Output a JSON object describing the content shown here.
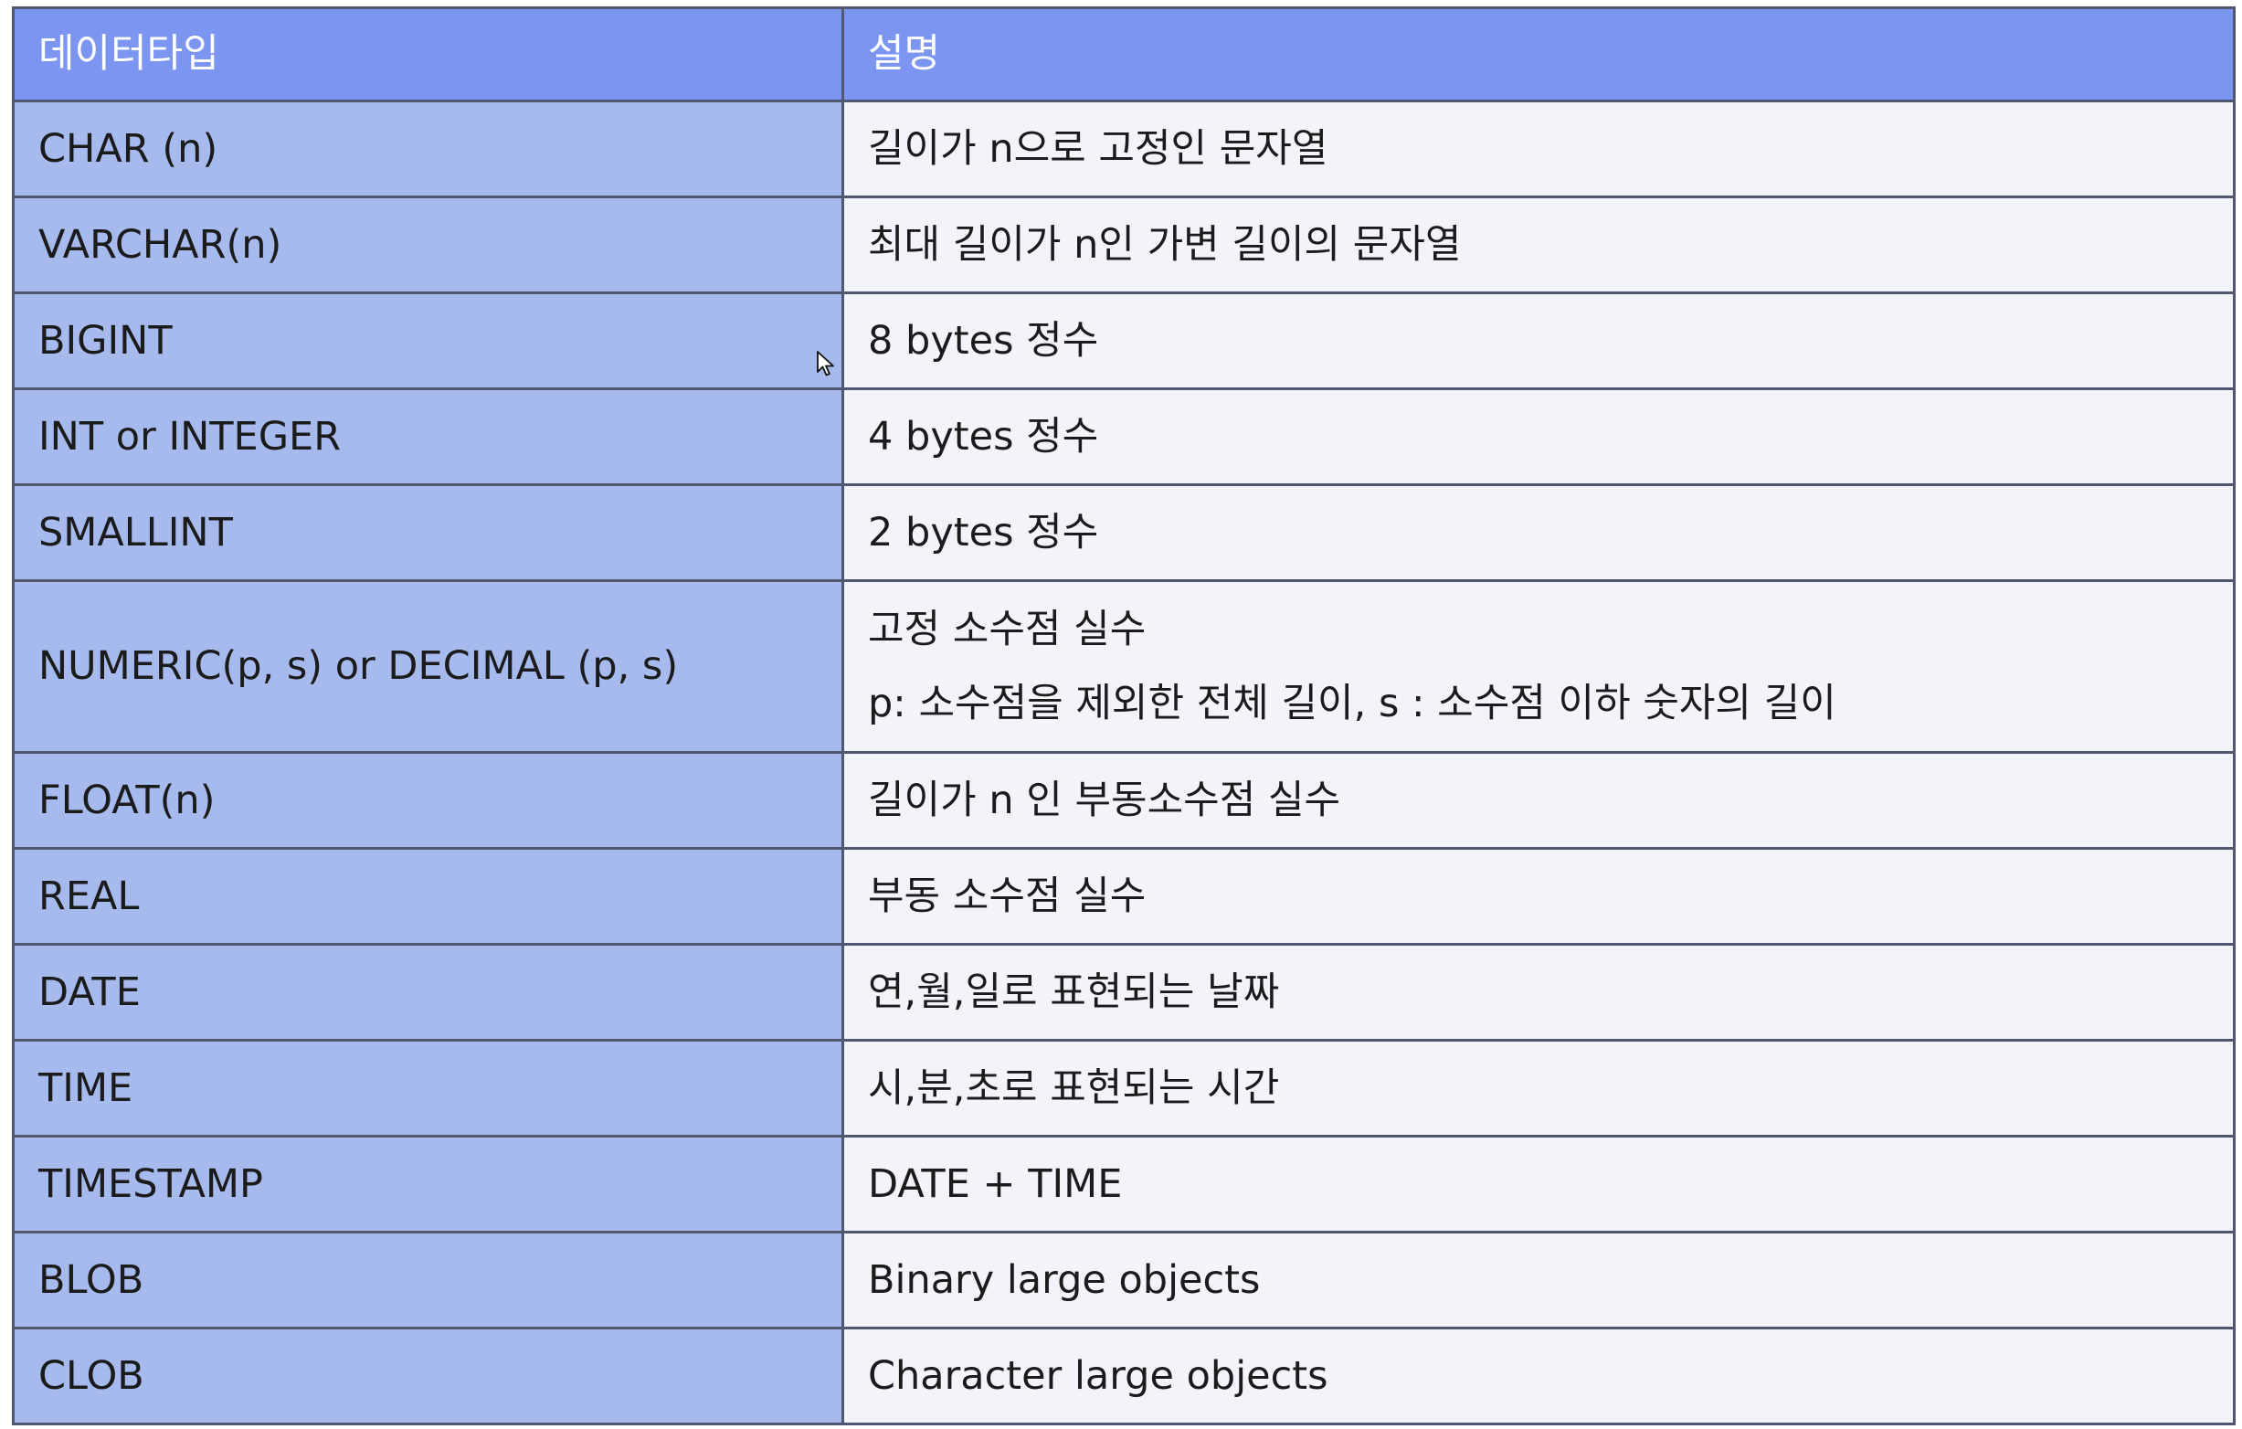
{
  "table": {
    "headers": [
      "데이터타입",
      "설명"
    ],
    "rows": [
      {
        "type": "CHAR (n)",
        "description": [
          "길이가 n으로 고정인 문자열"
        ]
      },
      {
        "type": "VARCHAR(n)",
        "description": [
          "최대 길이가 n인 가변 길이의 문자열"
        ]
      },
      {
        "type": "BIGINT",
        "description": [
          "8 bytes 정수"
        ]
      },
      {
        "type": "INT or INTEGER",
        "description": [
          "4 bytes 정수"
        ]
      },
      {
        "type": "SMALLINT",
        "description": [
          "2 bytes 정수"
        ]
      },
      {
        "type": "NUMERIC(p, s) or DECIMAL (p, s)",
        "description": [
          "고정 소수점 실수",
          "p: 소수점을 제외한 전체 길이, s : 소수점 이하 숫자의 길이"
        ]
      },
      {
        "type": "FLOAT(n)",
        "description": [
          "길이가 n 인 부동소수점 실수"
        ]
      },
      {
        "type": "REAL",
        "description": [
          "부동 소수점 실수"
        ]
      },
      {
        "type": "DATE",
        "description": [
          "연,월,일로 표현되는 날짜"
        ]
      },
      {
        "type": "TIME",
        "description": [
          "시,분,초로 표현되는 시간"
        ]
      },
      {
        "type": "TIMESTAMP",
        "description": [
          "DATE + TIME"
        ]
      },
      {
        "type": "BLOB",
        "description": [
          "Binary large objects"
        ]
      },
      {
        "type": "CLOB",
        "description": [
          "Character large objects"
        ]
      }
    ]
  },
  "colors": {
    "header_background": "#7c95f0",
    "type_column_background": "#a7baee",
    "description_column_background": "#f2f4fa",
    "border": "#4f5870"
  },
  "icons": {
    "cursor": "mouse-pointer-icon"
  }
}
